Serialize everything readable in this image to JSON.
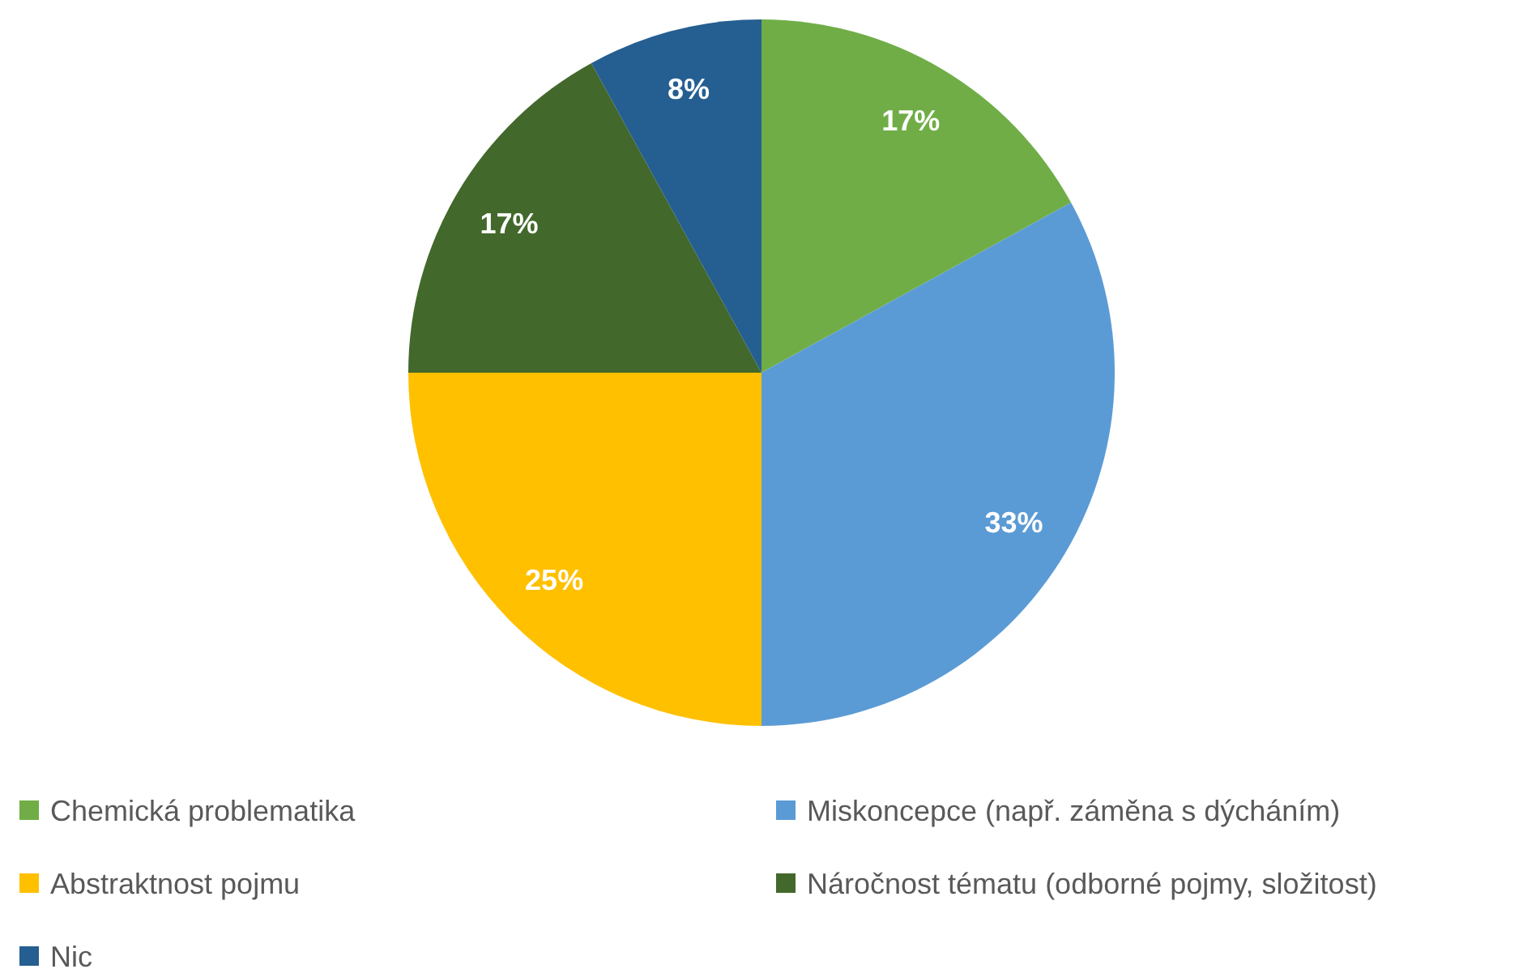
{
  "chart_data": {
    "type": "pie",
    "categories": [
      "Chemická problematika",
      "Miskoncepce (např. záměna s dýcháním)",
      "Abstraktnost pojmu",
      "Náročnost tématu (odborné pojmy, složitost)",
      "Nic"
    ],
    "values": [
      17,
      33,
      25,
      17,
      8
    ],
    "colors": [
      "#70ad47",
      "#5b9bd5",
      "#ffc000",
      "#43682b",
      "#255e91"
    ],
    "value_labels": [
      "17%",
      "33%",
      "25%",
      "17%",
      "8%"
    ],
    "legend": "bottom"
  }
}
